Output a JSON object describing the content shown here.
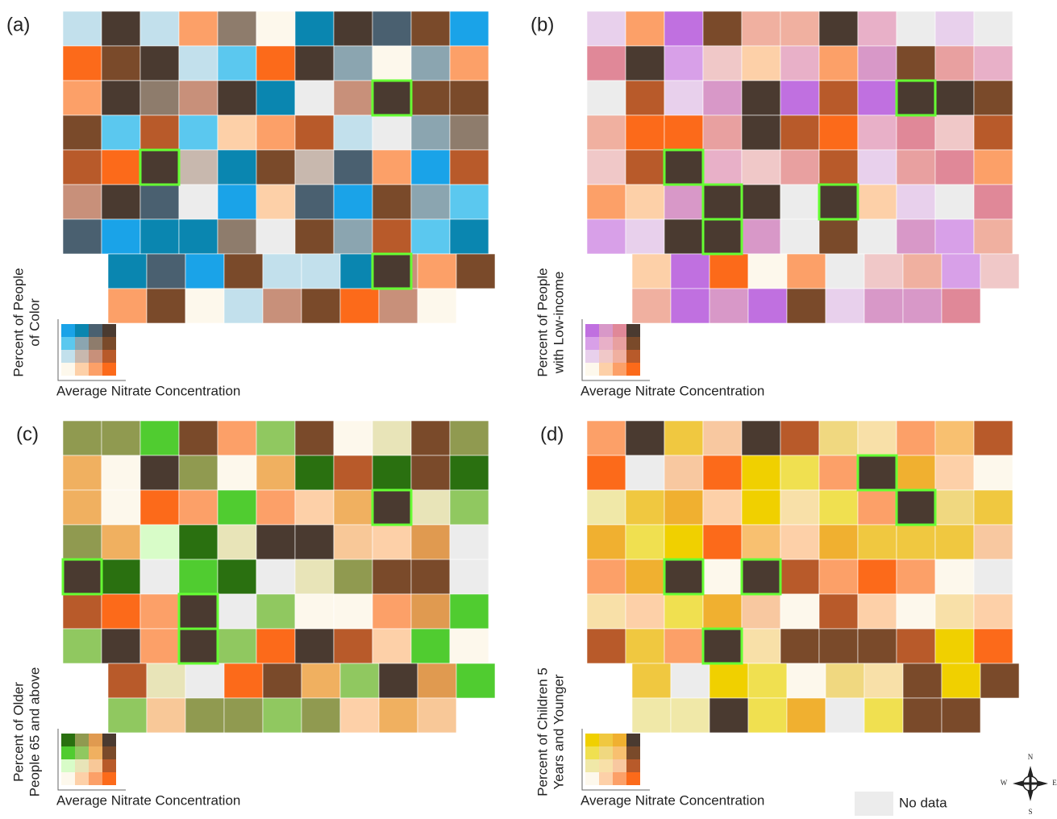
{
  "panels": [
    {
      "label": "(a)",
      "y_axis_label": [
        "Percent of People",
        "of Color"
      ],
      "x_axis_label": "Average Nitrate Concentration"
    },
    {
      "label": "(b)",
      "y_axis_label": [
        "Percent of People",
        "with Low-income"
      ],
      "x_axis_label": "Average Nitrate Concentration"
    },
    {
      "label": "(c)",
      "y_axis_label": [
        "Percent of Older",
        "People 65 and above"
      ],
      "x_axis_label": "Average Nitrate Concentration"
    },
    {
      "label": "(d)",
      "y_axis_label": [
        "Percent of Children 5",
        "Years and Younger"
      ],
      "x_axis_label": "Average Nitrate Concentration"
    }
  ],
  "no_data_label": "No data",
  "compass": {
    "n": "N",
    "s": "S",
    "w": "W",
    "e": "E"
  }
}
